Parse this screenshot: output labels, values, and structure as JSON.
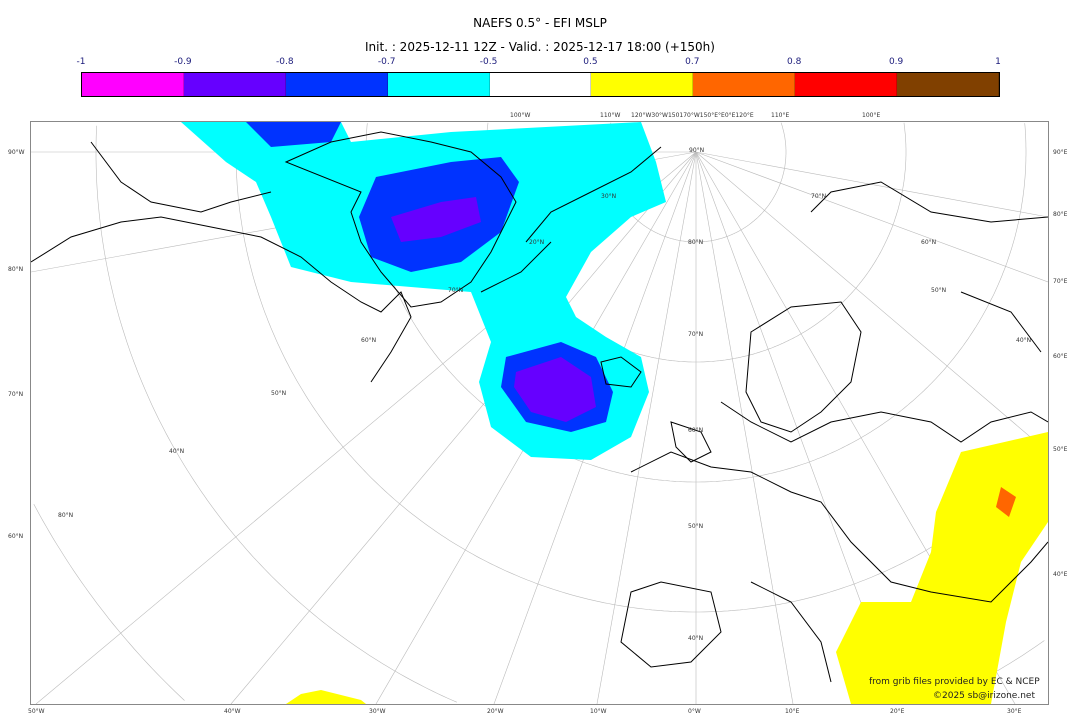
{
  "title": "NAEFS 0.5° - EFI MSLP",
  "subtitle": "Init. : 2025-12-11 12Z - Valid. : 2025-12-17 18:00 (+150h)",
  "colorbar": {
    "ticks": [
      "-1",
      "-0.9",
      "-0.8",
      "-0.7",
      "-0.5",
      "0.5",
      "0.7",
      "0.8",
      "0.9",
      "1"
    ],
    "colors": [
      "#ff00ff",
      "#6600ff",
      "#0033ff",
      "#00ffff",
      "#ffffff",
      "#ffff00",
      "#ff6600",
      "#ff0000",
      "#804000"
    ]
  },
  "labels": {
    "left": [
      "90°W",
      "80°N",
      "70°N",
      "60°N"
    ],
    "right": [
      "90°E",
      "80°E",
      "70°E",
      "60°E",
      "50°E",
      "40°E"
    ],
    "bottom": [
      "50°W",
      "40°W",
      "30°W",
      "20°W",
      "10°W",
      "0°W",
      "10°E",
      "20°E",
      "30°E"
    ],
    "top": [
      "100°W",
      "110°W",
      "120°W30°W150170°W150°E°E0°E120°E",
      "110°E",
      "100°E"
    ],
    "interior": [
      "90°N",
      "80°N",
      "70°N",
      "60°N",
      "50°N",
      "40°N",
      "30°N",
      "20°N",
      "70°N",
      "60°N",
      "50°N",
      "40°N",
      "80°N",
      "70°N",
      "60°N",
      "50°N",
      "40°N"
    ]
  },
  "credits": {
    "source": "from grib files provided by EC & NCEP",
    "copyright": "©2025 sb@irizone.net"
  }
}
